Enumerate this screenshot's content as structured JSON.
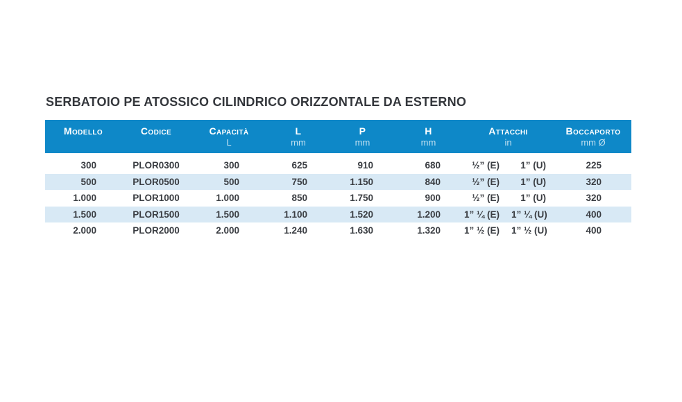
{
  "title": "SERBATOIO PE ATOSSICO CILINDRICO ORIZZONTALE DA ESTERNO",
  "colors": {
    "header_bg": "#0E88C8",
    "row_alt": "#D8E9F5",
    "body_text": "#3A3D42",
    "title_text": "#34373C",
    "header_text": "#FFFFFF"
  },
  "table": {
    "columns": [
      {
        "key": "modello",
        "label": "Modello",
        "sub": ""
      },
      {
        "key": "codice",
        "label": "Codice",
        "sub": ""
      },
      {
        "key": "capacita",
        "label": "Capacità",
        "sub": "L"
      },
      {
        "key": "l",
        "label": "L",
        "sub": "mm"
      },
      {
        "key": "p",
        "label": "P",
        "sub": "mm"
      },
      {
        "key": "h",
        "label": "H",
        "sub": "mm"
      },
      {
        "key": "attacchi",
        "label": "Attacchi",
        "sub": "in"
      },
      {
        "key": "boccaporto",
        "label": "Boccaporto",
        "sub": "mm Ø"
      }
    ],
    "rows": [
      {
        "modello": "300",
        "codice": "PLOR0300",
        "capacita": "300",
        "l": "625",
        "p": "910",
        "h": "680",
        "attacchi_e": "½” (E)",
        "attacchi_u": "1” (U)",
        "boccaporto": "225"
      },
      {
        "modello": "500",
        "codice": "PLOR0500",
        "capacita": "500",
        "l": "750",
        "p": "1.150",
        "h": "840",
        "attacchi_e": "½” (E)",
        "attacchi_u": "1” (U)",
        "boccaporto": "320"
      },
      {
        "modello": "1.000",
        "codice": "PLOR1000",
        "capacita": "1.000",
        "l": "850",
        "p": "1.750",
        "h": "900",
        "attacchi_e": "½” (E)",
        "attacchi_u": "1” (U)",
        "boccaporto": "320"
      },
      {
        "modello": "1.500",
        "codice": "PLOR1500",
        "capacita": "1.500",
        "l": "1.100",
        "p": "1.520",
        "h": "1.200",
        "attacchi_e": "1” ¼ (E)",
        "attacchi_u": "1” ¼ (U)",
        "boccaporto": "400"
      },
      {
        "modello": "2.000",
        "codice": "PLOR2000",
        "capacita": "2.000",
        "l": "1.240",
        "p": "1.630",
        "h": "1.320",
        "attacchi_e": "1” ½ (E)",
        "attacchi_u": "1” ½ (U)",
        "boccaporto": "400"
      }
    ]
  }
}
